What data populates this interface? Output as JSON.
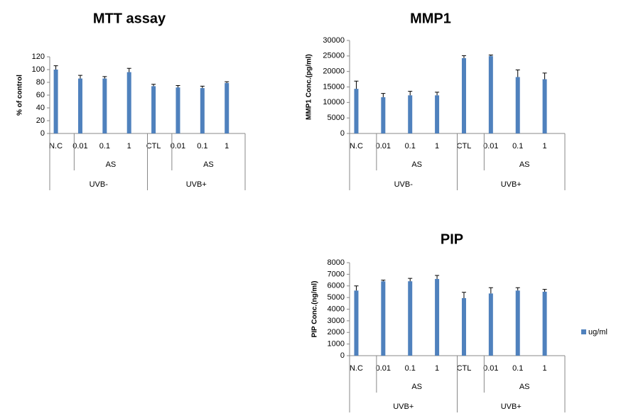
{
  "chart_data": [
    {
      "type": "bar",
      "title": "MTT assay",
      "y_label": "% of control",
      "categories": [
        "N.C",
        "0.01",
        "0.1",
        "1",
        "CTL",
        "0.01",
        "0.1",
        "1"
      ],
      "subgroups": [
        null,
        "AS",
        null,
        null,
        null,
        "AS",
        null,
        null
      ],
      "groups": [
        "UVB-",
        null,
        null,
        null,
        "UVB+",
        null,
        null,
        null
      ],
      "series": [
        {
          "color": "#4f81bd",
          "values": [
            100,
            86,
            86,
            96,
            74,
            72,
            71,
            79
          ],
          "errors": [
            6,
            5,
            3,
            6,
            3,
            3,
            3,
            2
          ]
        }
      ],
      "ylim": [
        0,
        120
      ],
      "yticks": [
        0,
        20,
        40,
        60,
        80,
        100,
        120
      ]
    },
    {
      "type": "bar",
      "title": "MMP1",
      "y_label": "MMP1 Conc.(pg/ml)",
      "categories": [
        "N.C",
        "0.01",
        "0.1",
        "1",
        "CTL",
        "0.01",
        "0.1",
        "1"
      ],
      "subgroups": [
        null,
        "AS",
        null,
        null,
        null,
        "AS",
        null,
        null
      ],
      "groups": [
        "UVB-",
        null,
        null,
        null,
        "UVB+",
        null,
        null,
        null
      ],
      "series": [
        {
          "color": "#4f81bd",
          "values": [
            14400,
            11700,
            12300,
            12300,
            24300,
            25000,
            18200,
            17500
          ],
          "errors": [
            2500,
            1200,
            1300,
            1000,
            800,
            300,
            2300,
            2000
          ]
        }
      ],
      "ylim": [
        0,
        30000
      ],
      "yticks": [
        0,
        5000,
        10000,
        15000,
        20000,
        25000,
        30000
      ]
    },
    {
      "type": "bar",
      "title": "PIP",
      "y_label": "PIP Conc.(ng/ml)",
      "categories": [
        "N.C",
        "0.01",
        "0.1",
        "1",
        "CTL",
        "0.01",
        "0.1",
        "1"
      ],
      "subgroups": [
        null,
        "AS",
        null,
        null,
        null,
        "AS",
        null,
        null
      ],
      "groups": [
        "UVB+",
        null,
        null,
        null,
        "UVB+",
        null,
        null,
        null
      ],
      "series": [
        {
          "name": "ug/ml",
          "color": "#4f81bd",
          "values": [
            5600,
            6400,
            6400,
            6600,
            4950,
            5350,
            5600,
            5500
          ],
          "errors": [
            400,
            100,
            250,
            300,
            500,
            500,
            250,
            200
          ]
        }
      ],
      "ylim": [
        0,
        8000
      ],
      "yticks": [
        0,
        1000,
        2000,
        3000,
        4000,
        5000,
        6000,
        7000,
        8000
      ],
      "legend": "right"
    }
  ]
}
